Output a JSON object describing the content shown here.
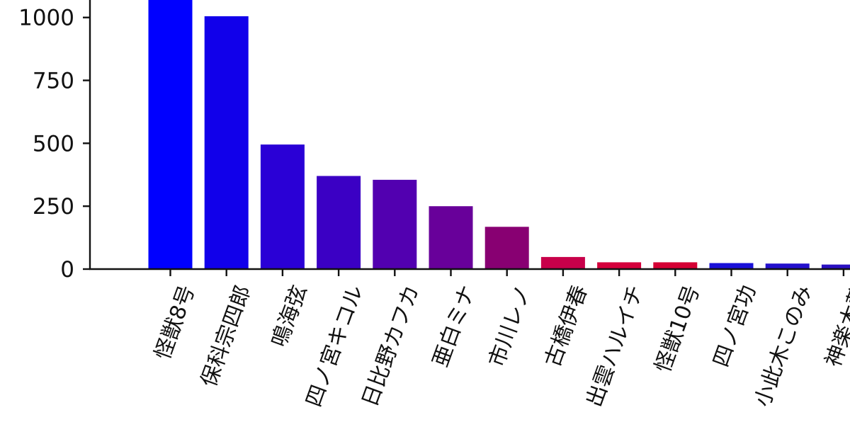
{
  "chart_data": {
    "type": "bar",
    "title": "",
    "xlabel": "",
    "ylabel": "",
    "categories": [
      "怪獣8号",
      "保科宗四郎",
      "鳴海弦",
      "四ノ宮キコル",
      "日比野カフカ",
      "亜白ミナ",
      "市川レノ",
      "古橋伊春",
      "出雲ハルイチ",
      "怪獣10号",
      "四ノ宮功",
      "小此木このみ",
      "神楽木葵"
    ],
    "values": [
      1080,
      1005,
      495,
      370,
      355,
      250,
      168,
      48,
      27,
      27,
      24,
      22,
      18
    ],
    "colors": [
      "#0000ff",
      "#1100ea",
      "#2a00d6",
      "#3b00c4",
      "#5200b0",
      "#68009a",
      "#880072",
      "#c8004a",
      "#d4003c",
      "#d40034",
      "#1a10d8",
      "#2410cc",
      "#2a10c0"
    ],
    "yticks": [
      0,
      250,
      500,
      750,
      1000
    ],
    "ylim": [
      0,
      1075
    ],
    "grid": false,
    "legend": "none"
  }
}
